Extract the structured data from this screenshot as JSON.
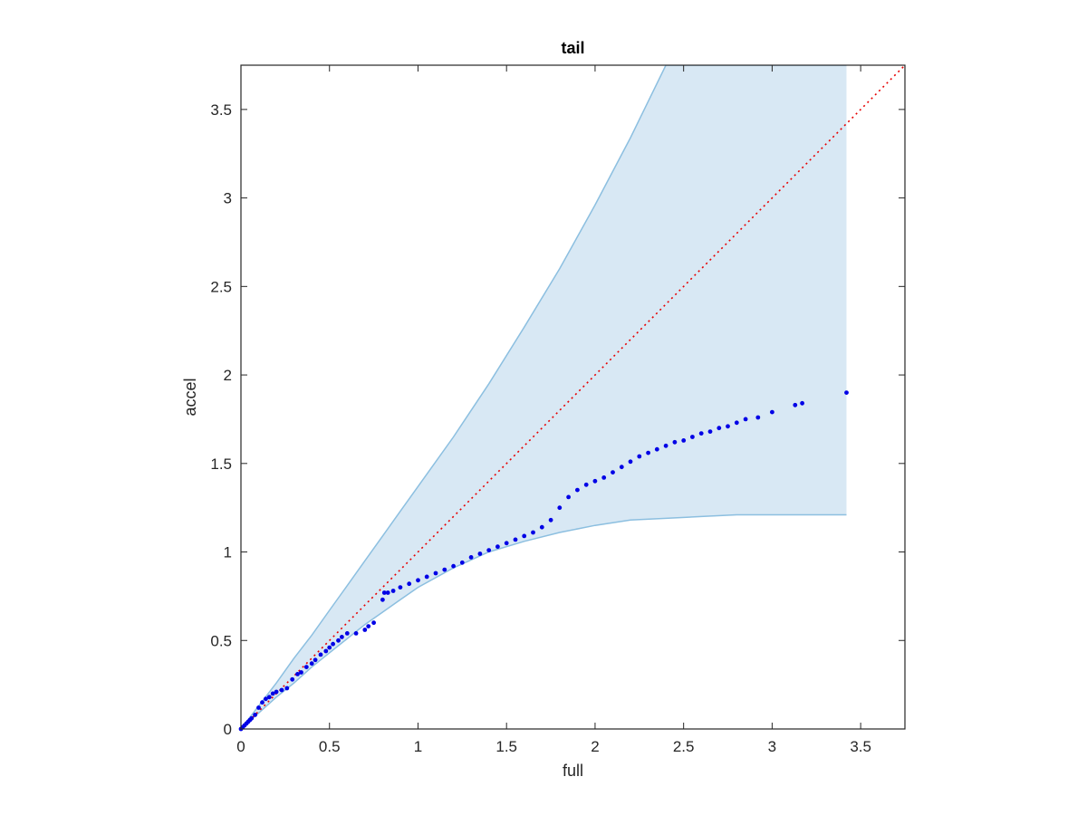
{
  "chart_data": {
    "type": "scatter",
    "title": "tail",
    "xlabel": "full",
    "ylabel": "accel",
    "xlim": [
      0,
      3.75
    ],
    "ylim": [
      0,
      3.75
    ],
    "xticks": [
      0,
      0.5,
      1,
      1.5,
      2,
      2.5,
      3,
      3.5
    ],
    "yticks": [
      0,
      0.5,
      1,
      1.5,
      2,
      2.5,
      3,
      3.5
    ],
    "xtick_labels": [
      "0",
      "0.5",
      "1",
      "1.5",
      "2",
      "2.5",
      "3",
      "3.5"
    ],
    "ytick_labels": [
      "0",
      "0.5",
      "1",
      "1.5",
      "2",
      "2.5",
      "3",
      "3.5"
    ],
    "grid": false,
    "box": true,
    "colors": {
      "points": "#0000e6",
      "reference_line": "#e60000",
      "band_fill": "#d8e8f4",
      "band_edge": "#8cbfe0",
      "axes": "#262626"
    },
    "reference_line": {
      "style": "dotted",
      "x": [
        0,
        3.75
      ],
      "y": [
        0,
        3.75
      ]
    },
    "band": {
      "x": [
        0,
        0.1,
        0.2,
        0.3,
        0.4,
        0.5,
        0.6,
        0.7,
        0.8,
        0.9,
        1.0,
        1.2,
        1.4,
        1.6,
        1.8,
        2.0,
        2.2,
        2.4,
        2.6,
        2.8,
        3.0,
        3.2,
        3.42
      ],
      "upper": [
        0,
        0.13,
        0.26,
        0.4,
        0.53,
        0.67,
        0.81,
        0.95,
        1.09,
        1.23,
        1.37,
        1.65,
        1.95,
        2.27,
        2.6,
        2.96,
        3.34,
        3.75,
        3.75,
        3.75,
        3.75,
        3.75,
        3.75
      ],
      "lower": [
        0,
        0.09,
        0.18,
        0.26,
        0.35,
        0.43,
        0.51,
        0.59,
        0.66,
        0.73,
        0.8,
        0.91,
        1.0,
        1.06,
        1.11,
        1.15,
        1.18,
        1.19,
        1.2,
        1.21,
        1.21,
        1.21,
        1.21
      ]
    },
    "series": [
      {
        "x": [
          0,
          0.01,
          0.02,
          0.03,
          0.04,
          0.05,
          0.06,
          0.08,
          0.1,
          0.12,
          0.14,
          0.16,
          0.18,
          0.2,
          0.23,
          0.26,
          0.29,
          0.32,
          0.34,
          0.37,
          0.4,
          0.42,
          0.45,
          0.48,
          0.5,
          0.52,
          0.55,
          0.57,
          0.6,
          0.65,
          0.7,
          0.72,
          0.75,
          0.8,
          0.81,
          0.83,
          0.86,
          0.9,
          0.95,
          1.0,
          1.05,
          1.1,
          1.15,
          1.2,
          1.25,
          1.3,
          1.35,
          1.4,
          1.45,
          1.5,
          1.55,
          1.6,
          1.65,
          1.7,
          1.75,
          1.8,
          1.85,
          1.9,
          1.95,
          2.0,
          2.05,
          2.1,
          2.15,
          2.2,
          2.25,
          2.3,
          2.35,
          2.4,
          2.45,
          2.5,
          2.55,
          2.6,
          2.65,
          2.7,
          2.75,
          2.8,
          2.85,
          2.92,
          3.0,
          3.13,
          3.17,
          3.42
        ],
        "y": [
          0,
          0.01,
          0.02,
          0.03,
          0.04,
          0.05,
          0.06,
          0.08,
          0.12,
          0.15,
          0.17,
          0.18,
          0.2,
          0.21,
          0.22,
          0.23,
          0.28,
          0.31,
          0.32,
          0.35,
          0.37,
          0.39,
          0.42,
          0.44,
          0.46,
          0.48,
          0.5,
          0.52,
          0.54,
          0.54,
          0.56,
          0.58,
          0.6,
          0.73,
          0.77,
          0.77,
          0.78,
          0.8,
          0.82,
          0.84,
          0.86,
          0.88,
          0.9,
          0.92,
          0.94,
          0.97,
          0.99,
          1.01,
          1.03,
          1.05,
          1.07,
          1.09,
          1.11,
          1.14,
          1.18,
          1.25,
          1.31,
          1.35,
          1.38,
          1.4,
          1.42,
          1.45,
          1.48,
          1.51,
          1.54,
          1.56,
          1.58,
          1.6,
          1.62,
          1.63,
          1.65,
          1.67,
          1.68,
          1.7,
          1.71,
          1.73,
          1.75,
          1.76,
          1.79,
          1.83,
          1.84,
          1.9
        ]
      }
    ]
  }
}
